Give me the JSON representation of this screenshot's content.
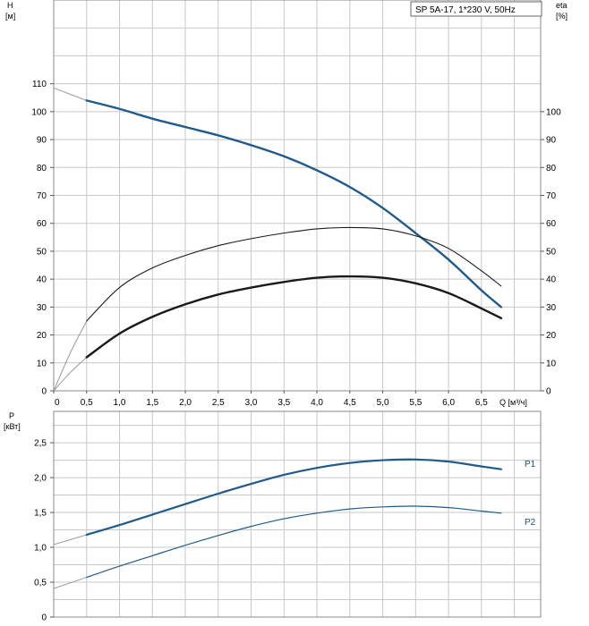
{
  "colors": {
    "grid": "#c8c8c8",
    "frame": "#888888",
    "head_curve": "#1f5a8c",
    "eta_curve": "#1a1a1a",
    "power_curve": "#1f5a8c",
    "extension": "#9a9a9a",
    "label_blue": "#1f5a8c"
  },
  "chart_data": [
    {
      "type": "line",
      "legend": "SP 5A-17, 1*230 V, 50Hz",
      "x_axis": {
        "label": "Q [м³/ч]",
        "ticks": [
          "0",
          "0,5",
          "1,0",
          "1,5",
          "2,0",
          "2,5",
          "3,0",
          "3,5",
          "4,0",
          "4,5",
          "5,0",
          "5,5",
          "6,0",
          "6,5"
        ],
        "range": [
          0,
          7.4
        ]
      },
      "y_axis_left": {
        "label_top": "H",
        "label_unit": "[м]",
        "ticks": [
          "0",
          "10",
          "20",
          "30",
          "40",
          "50",
          "60",
          "70",
          "80",
          "90",
          "100",
          "110"
        ],
        "range": [
          0,
          140
        ]
      },
      "y_axis_right": {
        "label_top": "eta",
        "label_unit": "[%]",
        "ticks": [
          "0",
          "10",
          "20",
          "30",
          "40",
          "50",
          "60",
          "70",
          "80",
          "90",
          "100"
        ],
        "range": [
          0,
          140
        ]
      },
      "series": [
        {
          "key": "head",
          "axis": "left",
          "x": [
            0.5,
            1.0,
            1.5,
            2.0,
            2.5,
            3.0,
            3.5,
            4.0,
            4.5,
            5.0,
            5.5,
            6.0,
            6.5,
            6.8
          ],
          "y": [
            104,
            101,
            97.5,
            94.5,
            91.5,
            88,
            84,
            79,
            73,
            65.5,
            56.5,
            47,
            36,
            30
          ],
          "extension": {
            "x": [
              0,
              0.5
            ],
            "y": [
              108.5,
              104
            ]
          }
        },
        {
          "key": "eta_thin",
          "axis": "right",
          "x": [
            0.5,
            1.0,
            1.5,
            2.0,
            2.5,
            3.0,
            3.5,
            4.0,
            4.5,
            5.0,
            5.5,
            6.0,
            6.5,
            6.8
          ],
          "y": [
            25,
            37,
            44,
            48.5,
            52,
            54.5,
            56.5,
            58,
            58.5,
            58,
            55.5,
            51,
            43,
            37.5
          ],
          "extension": {
            "x": [
              0,
              0.25,
              0.5
            ],
            "y": [
              0,
              13.5,
              25
            ]
          }
        },
        {
          "key": "eta_thick",
          "axis": "right",
          "x": [
            0.5,
            1.0,
            1.5,
            2.0,
            2.5,
            3.0,
            3.5,
            4.0,
            4.5,
            5.0,
            5.5,
            6.0,
            6.5,
            6.8
          ],
          "y": [
            12,
            20.5,
            26.5,
            31,
            34.5,
            37,
            39,
            40.5,
            41,
            40.5,
            38.5,
            35,
            29.5,
            26
          ],
          "extension": {
            "x": [
              0,
              0.25,
              0.5
            ],
            "y": [
              0,
              6.5,
              12
            ]
          }
        }
      ]
    },
    {
      "type": "line",
      "y_axis_left": {
        "label_top": "P",
        "label_unit": "[кВт]",
        "ticks": [
          "0",
          "0,5",
          "1,0",
          "1,5",
          "2,0",
          "2,5"
        ],
        "range": [
          0,
          2.95
        ]
      },
      "x_axis": {
        "range": [
          0,
          7.4
        ]
      },
      "series": [
        {
          "key": "P1",
          "name": "P1",
          "x": [
            0.5,
            1.0,
            1.5,
            2.0,
            2.5,
            3.0,
            3.5,
            4.0,
            4.5,
            5.0,
            5.5,
            6.0,
            6.5,
            6.8
          ],
          "y": [
            1.18,
            1.32,
            1.47,
            1.62,
            1.77,
            1.91,
            2.04,
            2.14,
            2.21,
            2.25,
            2.26,
            2.23,
            2.16,
            2.12
          ],
          "extension": {
            "x": [
              0,
              0.5
            ],
            "y": [
              1.04,
              1.18
            ]
          }
        },
        {
          "key": "P2",
          "name": "P2",
          "x": [
            0.5,
            1.0,
            1.5,
            2.0,
            2.5,
            3.0,
            3.5,
            4.0,
            4.5,
            5.0,
            5.5,
            6.0,
            6.5,
            6.8
          ],
          "y": [
            0.57,
            0.73,
            0.88,
            1.03,
            1.17,
            1.3,
            1.41,
            1.49,
            1.55,
            1.58,
            1.59,
            1.57,
            1.52,
            1.49
          ],
          "extension": {
            "x": [
              0,
              0.5
            ],
            "y": [
              0.41,
              0.57
            ]
          }
        }
      ]
    }
  ]
}
